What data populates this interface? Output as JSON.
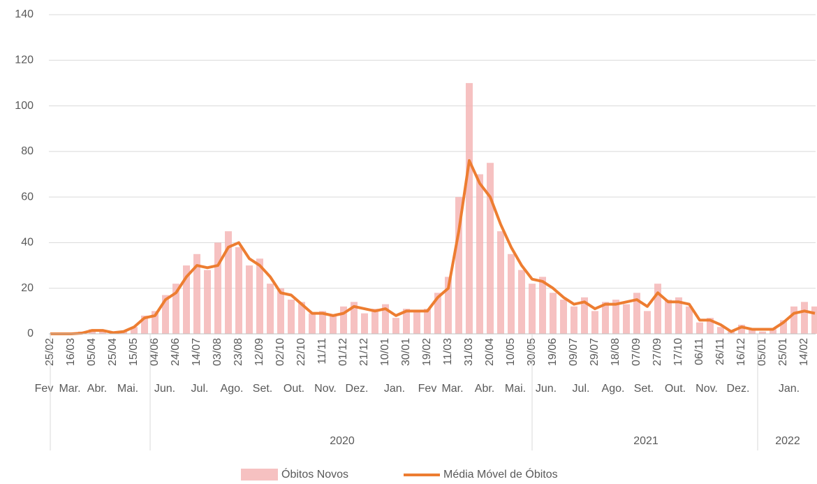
{
  "chart_data": {
    "type": "bar_line",
    "categories": [
      "25/02",
      null,
      "16/03",
      null,
      "05/04",
      null,
      "25/04",
      null,
      "15/05",
      null,
      "04/06",
      null,
      "24/06",
      null,
      "14/07",
      null,
      "03/08",
      null,
      "23/08",
      null,
      "12/09",
      null,
      "02/10",
      null,
      "22/10",
      null,
      "11/11",
      null,
      "01/12",
      null,
      "21/12",
      null,
      "10/01",
      null,
      "30/01",
      null,
      "19/02",
      null,
      "11/03",
      null,
      "31/03",
      null,
      "20/04",
      null,
      "10/05",
      null,
      "30/05",
      null,
      "19/06",
      null,
      "09/07",
      null,
      "29/07",
      null,
      "18/08",
      null,
      "07/09",
      null,
      "27/09",
      null,
      "17/10",
      null,
      "06/11",
      null,
      "26/11",
      null,
      "16/12",
      null,
      "05/01",
      null,
      "25/01",
      null,
      "14/02",
      null
    ],
    "months": [
      "Fev",
      "Mar.",
      "Abr.",
      "Mai.",
      "Jun.",
      "Jul.",
      "Ago.",
      "Set.",
      "Out.",
      "Nov.",
      "Dez.",
      "Jan.",
      "Fev",
      "Mar.",
      "Abr.",
      "Mai.",
      "Jun.",
      "Jul.",
      "Ago.",
      "Set.",
      "Out.",
      "Nov.",
      "Dez.",
      "Jan."
    ],
    "years": [
      "2020",
      "2021",
      "2022"
    ],
    "series": [
      {
        "name": "Óbitos Novos",
        "color": "#f4b6b6",
        "values": [
          0,
          0,
          0,
          1,
          2,
          1,
          1,
          1,
          3,
          8,
          10,
          17,
          22,
          30,
          35,
          28,
          40,
          45,
          38,
          30,
          33,
          22,
          20,
          15,
          14,
          9,
          10,
          8,
          12,
          14,
          9,
          11,
          13,
          7,
          11,
          10,
          11,
          18,
          25,
          60,
          110,
          70,
          75,
          45,
          35,
          28,
          22,
          25,
          18,
          15,
          12,
          16,
          10,
          14,
          15,
          13,
          18,
          10,
          22,
          15,
          16,
          12,
          5,
          7,
          3,
          1,
          4,
          2,
          1,
          2,
          6,
          12,
          14,
          12
        ]
      },
      {
        "name": "Média Móvel de Óbitos",
        "color": "#ed7d31",
        "values": [
          0,
          0,
          0,
          0.3,
          1.5,
          1.5,
          0.5,
          1,
          3,
          7,
          8,
          15,
          18,
          25,
          30,
          29,
          30,
          38,
          40,
          33,
          30,
          25,
          18,
          17,
          13,
          9,
          9,
          8,
          9,
          12,
          11,
          10,
          11,
          8,
          10,
          10,
          10,
          16,
          20,
          45,
          76,
          66,
          60,
          48,
          38,
          30,
          24,
          23,
          20,
          16,
          13,
          14,
          11,
          13,
          13,
          14,
          15,
          12,
          18,
          14,
          14,
          13,
          6,
          6,
          4,
          1,
          3,
          2,
          2,
          2,
          5,
          9,
          10,
          9
        ]
      }
    ],
    "ylim": [
      0,
      140
    ],
    "yticks": [
      0,
      20,
      40,
      60,
      80,
      100,
      120,
      140
    ],
    "grid": true
  }
}
